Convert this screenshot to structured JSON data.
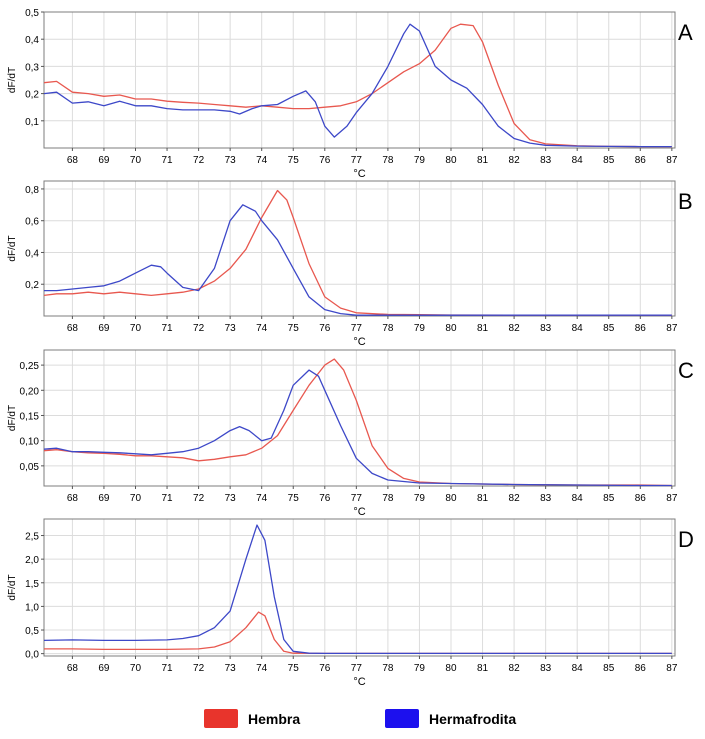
{
  "colors": {
    "hembra": "#e8584f",
    "hermafrodita": "#3d48c8",
    "legend_hembra": "#e8342c",
    "legend_hermafrodita": "#1c10ee",
    "grid": "#dcdcdc",
    "axis": "#7c7c7c"
  },
  "legend": {
    "hembra": "Hembra",
    "hermafrodita": "Hermafrodita"
  },
  "chart_data": [
    {
      "type": "line",
      "panel_label": "A",
      "xlabel": "°C",
      "ylabel": "dF/dT",
      "xlim": [
        67.1,
        87.1
      ],
      "ylim": [
        0,
        0.5
      ],
      "xticks": [
        68,
        69,
        70,
        71,
        72,
        73,
        74,
        75,
        76,
        77,
        78,
        79,
        80,
        81,
        82,
        83,
        84,
        85,
        86,
        87
      ],
      "yticks": [
        {
          "v": 0.1,
          "l": "0,1"
        },
        {
          "v": 0.2,
          "l": "0,2"
        },
        {
          "v": 0.3,
          "l": "0,3"
        },
        {
          "v": 0.4,
          "l": "0,4"
        },
        {
          "v": 0.5,
          "l": "0,5"
        }
      ],
      "grid": true,
      "series": [
        {
          "name": "Hembra",
          "color_key": "hembra",
          "points": [
            [
              67.1,
              0.24
            ],
            [
              67.5,
              0.245
            ],
            [
              68,
              0.205
            ],
            [
              68.5,
              0.2
            ],
            [
              69,
              0.19
            ],
            [
              69.5,
              0.195
            ],
            [
              70,
              0.18
            ],
            [
              70.5,
              0.18
            ],
            [
              71,
              0.172
            ],
            [
              71.5,
              0.168
            ],
            [
              72,
              0.165
            ],
            [
              72.5,
              0.16
            ],
            [
              73,
              0.155
            ],
            [
              73.5,
              0.15
            ],
            [
              74,
              0.155
            ],
            [
              74.5,
              0.15
            ],
            [
              75,
              0.145
            ],
            [
              75.5,
              0.145
            ],
            [
              76,
              0.15
            ],
            [
              76.5,
              0.155
            ],
            [
              77,
              0.17
            ],
            [
              77.5,
              0.2
            ],
            [
              78,
              0.24
            ],
            [
              78.5,
              0.28
            ],
            [
              79,
              0.31
            ],
            [
              79.5,
              0.36
            ],
            [
              80,
              0.44
            ],
            [
              80.3,
              0.455
            ],
            [
              80.7,
              0.45
            ],
            [
              81,
              0.39
            ],
            [
              81.5,
              0.23
            ],
            [
              82,
              0.09
            ],
            [
              82.5,
              0.03
            ],
            [
              83,
              0.015
            ],
            [
              84,
              0.008
            ],
            [
              85,
              0.006
            ],
            [
              86,
              0.005
            ],
            [
              87,
              0.005
            ]
          ]
        },
        {
          "name": "Hermafrodita",
          "color_key": "hermafrodita",
          "points": [
            [
              67.1,
              0.2
            ],
            [
              67.5,
              0.205
            ],
            [
              68,
              0.165
            ],
            [
              68.5,
              0.17
            ],
            [
              69,
              0.155
            ],
            [
              69.5,
              0.172
            ],
            [
              70,
              0.155
            ],
            [
              70.5,
              0.155
            ],
            [
              71,
              0.145
            ],
            [
              71.5,
              0.14
            ],
            [
              72,
              0.14
            ],
            [
              72.5,
              0.14
            ],
            [
              73,
              0.135
            ],
            [
              73.3,
              0.125
            ],
            [
              73.7,
              0.145
            ],
            [
              74,
              0.155
            ],
            [
              74.5,
              0.16
            ],
            [
              75,
              0.19
            ],
            [
              75.4,
              0.21
            ],
            [
              75.7,
              0.17
            ],
            [
              76,
              0.08
            ],
            [
              76.3,
              0.04
            ],
            [
              76.7,
              0.08
            ],
            [
              77,
              0.13
            ],
            [
              77.5,
              0.2
            ],
            [
              78,
              0.3
            ],
            [
              78.5,
              0.42
            ],
            [
              78.7,
              0.455
            ],
            [
              79,
              0.43
            ],
            [
              79.5,
              0.3
            ],
            [
              80,
              0.25
            ],
            [
              80.5,
              0.22
            ],
            [
              81,
              0.16
            ],
            [
              81.5,
              0.08
            ],
            [
              82,
              0.035
            ],
            [
              82.5,
              0.018
            ],
            [
              83,
              0.01
            ],
            [
              84,
              0.007
            ],
            [
              85,
              0.006
            ],
            [
              86,
              0.005
            ],
            [
              87,
              0.005
            ]
          ]
        }
      ]
    },
    {
      "type": "line",
      "panel_label": "B",
      "xlabel": "°C",
      "ylabel": "dF/dT",
      "xlim": [
        67.1,
        87.1
      ],
      "ylim": [
        0,
        0.85
      ],
      "xticks": [
        68,
        69,
        70,
        71,
        72,
        73,
        74,
        75,
        76,
        77,
        78,
        79,
        80,
        81,
        82,
        83,
        84,
        85,
        86,
        87
      ],
      "yticks": [
        {
          "v": 0.2,
          "l": "0,2"
        },
        {
          "v": 0.4,
          "l": "0,4"
        },
        {
          "v": 0.6,
          "l": "0,6"
        },
        {
          "v": 0.8,
          "l": "0,8"
        }
      ],
      "grid": true,
      "series": [
        {
          "name": "Hembra",
          "color_key": "hembra",
          "points": [
            [
              67.1,
              0.13
            ],
            [
              67.5,
              0.14
            ],
            [
              68,
              0.14
            ],
            [
              68.5,
              0.15
            ],
            [
              69,
              0.14
            ],
            [
              69.5,
              0.15
            ],
            [
              70,
              0.14
            ],
            [
              70.5,
              0.13
            ],
            [
              71,
              0.14
            ],
            [
              71.5,
              0.15
            ],
            [
              72,
              0.17
            ],
            [
              72.5,
              0.22
            ],
            [
              73,
              0.3
            ],
            [
              73.5,
              0.42
            ],
            [
              74,
              0.62
            ],
            [
              74.5,
              0.79
            ],
            [
              74.8,
              0.73
            ],
            [
              75,
              0.62
            ],
            [
              75.5,
              0.33
            ],
            [
              76,
              0.12
            ],
            [
              76.5,
              0.05
            ],
            [
              77,
              0.02
            ],
            [
              78,
              0.01
            ],
            [
              79,
              0.008
            ],
            [
              80,
              0.006
            ],
            [
              82,
              0.005
            ],
            [
              87,
              0.005
            ]
          ]
        },
        {
          "name": "Hermafrodita",
          "color_key": "hermafrodita",
          "points": [
            [
              67.1,
              0.16
            ],
            [
              67.5,
              0.16
            ],
            [
              68,
              0.17
            ],
            [
              68.5,
              0.18
            ],
            [
              69,
              0.19
            ],
            [
              69.5,
              0.22
            ],
            [
              70,
              0.27
            ],
            [
              70.5,
              0.32
            ],
            [
              70.8,
              0.31
            ],
            [
              71,
              0.27
            ],
            [
              71.5,
              0.18
            ],
            [
              72,
              0.16
            ],
            [
              72.5,
              0.3
            ],
            [
              73,
              0.6
            ],
            [
              73.4,
              0.7
            ],
            [
              73.8,
              0.66
            ],
            [
              74,
              0.6
            ],
            [
              74.5,
              0.48
            ],
            [
              75,
              0.3
            ],
            [
              75.5,
              0.12
            ],
            [
              76,
              0.04
            ],
            [
              76.5,
              0.015
            ],
            [
              77,
              0.005
            ],
            [
              87,
              0.005
            ]
          ]
        }
      ]
    },
    {
      "type": "line",
      "panel_label": "C",
      "xlabel": "°C",
      "ylabel": "dF/dT",
      "xlim": [
        67.1,
        87.1
      ],
      "ylim": [
        0.01,
        0.28
      ],
      "xticks": [
        68,
        69,
        70,
        71,
        72,
        73,
        74,
        75,
        76,
        77,
        78,
        79,
        80,
        81,
        82,
        83,
        84,
        85,
        86,
        87
      ],
      "yticks": [
        {
          "v": 0.05,
          "l": "0,05"
        },
        {
          "v": 0.1,
          "l": "0,10"
        },
        {
          "v": 0.15,
          "l": "0,15"
        },
        {
          "v": 0.2,
          "l": "0,20"
        },
        {
          "v": 0.25,
          "l": "0,25"
        }
      ],
      "grid": true,
      "series": [
        {
          "name": "Hembra",
          "color_key": "hembra",
          "points": [
            [
              67.1,
              0.08
            ],
            [
              67.5,
              0.082
            ],
            [
              68,
              0.078
            ],
            [
              68.5,
              0.076
            ],
            [
              69,
              0.075
            ],
            [
              69.5,
              0.073
            ],
            [
              70,
              0.07
            ],
            [
              70.5,
              0.07
            ],
            [
              71,
              0.068
            ],
            [
              71.5,
              0.066
            ],
            [
              72,
              0.06
            ],
            [
              72.5,
              0.063
            ],
            [
              73,
              0.068
            ],
            [
              73.5,
              0.072
            ],
            [
              74,
              0.085
            ],
            [
              74.5,
              0.11
            ],
            [
              75,
              0.16
            ],
            [
              75.5,
              0.21
            ],
            [
              76,
              0.25
            ],
            [
              76.3,
              0.262
            ],
            [
              76.6,
              0.24
            ],
            [
              77,
              0.18
            ],
            [
              77.5,
              0.09
            ],
            [
              78,
              0.045
            ],
            [
              78.5,
              0.025
            ],
            [
              79,
              0.018
            ],
            [
              80,
              0.015
            ],
            [
              82,
              0.013
            ],
            [
              84,
              0.012
            ],
            [
              86,
              0.012
            ],
            [
              87,
              0.011
            ]
          ]
        },
        {
          "name": "Hermafrodita",
          "color_key": "hermafrodita",
          "points": [
            [
              67.1,
              0.083
            ],
            [
              67.5,
              0.085
            ],
            [
              68,
              0.078
            ],
            [
              68.5,
              0.078
            ],
            [
              69,
              0.077
            ],
            [
              69.5,
              0.076
            ],
            [
              70,
              0.074
            ],
            [
              70.5,
              0.072
            ],
            [
              71,
              0.075
            ],
            [
              71.5,
              0.078
            ],
            [
              72,
              0.085
            ],
            [
              72.5,
              0.1
            ],
            [
              73,
              0.12
            ],
            [
              73.3,
              0.128
            ],
            [
              73.6,
              0.12
            ],
            [
              74,
              0.1
            ],
            [
              74.3,
              0.105
            ],
            [
              74.7,
              0.16
            ],
            [
              75,
              0.21
            ],
            [
              75.5,
              0.24
            ],
            [
              75.8,
              0.228
            ],
            [
              76,
              0.2
            ],
            [
              76.5,
              0.13
            ],
            [
              77,
              0.065
            ],
            [
              77.5,
              0.035
            ],
            [
              78,
              0.022
            ],
            [
              79,
              0.016
            ],
            [
              80,
              0.015
            ],
            [
              82,
              0.013
            ],
            [
              84,
              0.012
            ],
            [
              86,
              0.011
            ],
            [
              87,
              0.011
            ]
          ]
        }
      ]
    },
    {
      "type": "line",
      "panel_label": "D",
      "xlabel": "°C",
      "ylabel": "dF/dT",
      "xlim": [
        67.1,
        87.1
      ],
      "ylim": [
        -0.05,
        2.85
      ],
      "xticks": [
        68,
        69,
        70,
        71,
        72,
        73,
        74,
        75,
        76,
        77,
        78,
        79,
        80,
        81,
        82,
        83,
        84,
        85,
        86,
        87
      ],
      "yticks": [
        {
          "v": 0,
          "l": "0,0"
        },
        {
          "v": 0.5,
          "l": "0,5"
        },
        {
          "v": 1,
          "l": "1,0"
        },
        {
          "v": 1.5,
          "l": "1,5"
        },
        {
          "v": 2,
          "l": "2,0"
        },
        {
          "v": 2.5,
          "l": "2,5"
        }
      ],
      "grid": true,
      "series": [
        {
          "name": "Hembra",
          "color_key": "hembra",
          "points": [
            [
              67.1,
              0.1
            ],
            [
              68,
              0.1
            ],
            [
              69,
              0.09
            ],
            [
              70,
              0.09
            ],
            [
              71,
              0.09
            ],
            [
              72,
              0.1
            ],
            [
              72.5,
              0.14
            ],
            [
              73,
              0.25
            ],
            [
              73.5,
              0.55
            ],
            [
              73.9,
              0.88
            ],
            [
              74.1,
              0.8
            ],
            [
              74.4,
              0.3
            ],
            [
              74.7,
              0.05
            ],
            [
              75,
              0.01
            ],
            [
              76,
              0.005
            ],
            [
              87,
              0.005
            ]
          ]
        },
        {
          "name": "Hermafrodita",
          "color_key": "hermafrodita",
          "points": [
            [
              67.1,
              0.28
            ],
            [
              68,
              0.29
            ],
            [
              69,
              0.28
            ],
            [
              70,
              0.28
            ],
            [
              71,
              0.29
            ],
            [
              71.5,
              0.32
            ],
            [
              72,
              0.38
            ],
            [
              72.5,
              0.55
            ],
            [
              73,
              0.9
            ],
            [
              73.5,
              2.0
            ],
            [
              73.85,
              2.72
            ],
            [
              74.1,
              2.4
            ],
            [
              74.4,
              1.2
            ],
            [
              74.7,
              0.3
            ],
            [
              75,
              0.05
            ],
            [
              75.5,
              0.01
            ],
            [
              76,
              0.005
            ],
            [
              87,
              0.005
            ]
          ]
        }
      ]
    }
  ]
}
